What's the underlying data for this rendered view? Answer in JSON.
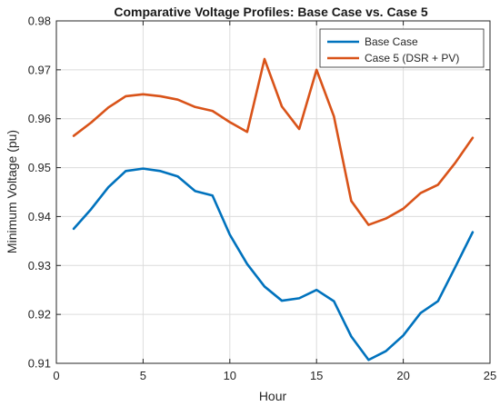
{
  "chart_data": {
    "type": "line",
    "title": "Comparative Voltage Profiles: Base Case vs. Case 5",
    "xlabel": "Hour",
    "ylabel": "Minimum Voltage (pu)",
    "xlim": [
      0,
      25
    ],
    "ylim": [
      0.91,
      0.98
    ],
    "xticks": [
      0,
      5,
      10,
      15,
      20,
      25
    ],
    "yticks": [
      0.91,
      0.92,
      0.93,
      0.94,
      0.95,
      0.96,
      0.97,
      0.98
    ],
    "xtick_labels": [
      "0",
      "5",
      "10",
      "15",
      "20",
      "25"
    ],
    "ytick_labels": [
      "0.91",
      "0.92",
      "0.93",
      "0.94",
      "0.95",
      "0.96",
      "0.97",
      "0.98"
    ],
    "grid": true,
    "legend_position": "top-right",
    "x": [
      1,
      2,
      3,
      4,
      5,
      6,
      7,
      8,
      9,
      10,
      11,
      12,
      13,
      14,
      15,
      16,
      17,
      18,
      19,
      20,
      21,
      22,
      23,
      24
    ],
    "series": [
      {
        "name": "Base Case",
        "color": "#0072BD",
        "values": [
          0.9375,
          0.9415,
          0.946,
          0.9493,
          0.9498,
          0.9493,
          0.9482,
          0.9452,
          0.9443,
          0.9363,
          0.9303,
          0.9257,
          0.9228,
          0.9233,
          0.925,
          0.9227,
          0.9155,
          0.9107,
          0.9125,
          0.9157,
          0.9203,
          0.9227,
          0.9297,
          0.9368
        ]
      },
      {
        "name": "Case 5 (DSR + PV)",
        "color": "#D95319",
        "values": [
          0.9565,
          0.9592,
          0.9623,
          0.9646,
          0.965,
          0.9646,
          0.9639,
          0.9624,
          0.9616,
          0.9593,
          0.9573,
          0.9722,
          0.9625,
          0.9579,
          0.97,
          0.9605,
          0.9432,
          0.9383,
          0.9396,
          0.9416,
          0.9448,
          0.9465,
          0.951,
          0.9561
        ]
      }
    ]
  }
}
